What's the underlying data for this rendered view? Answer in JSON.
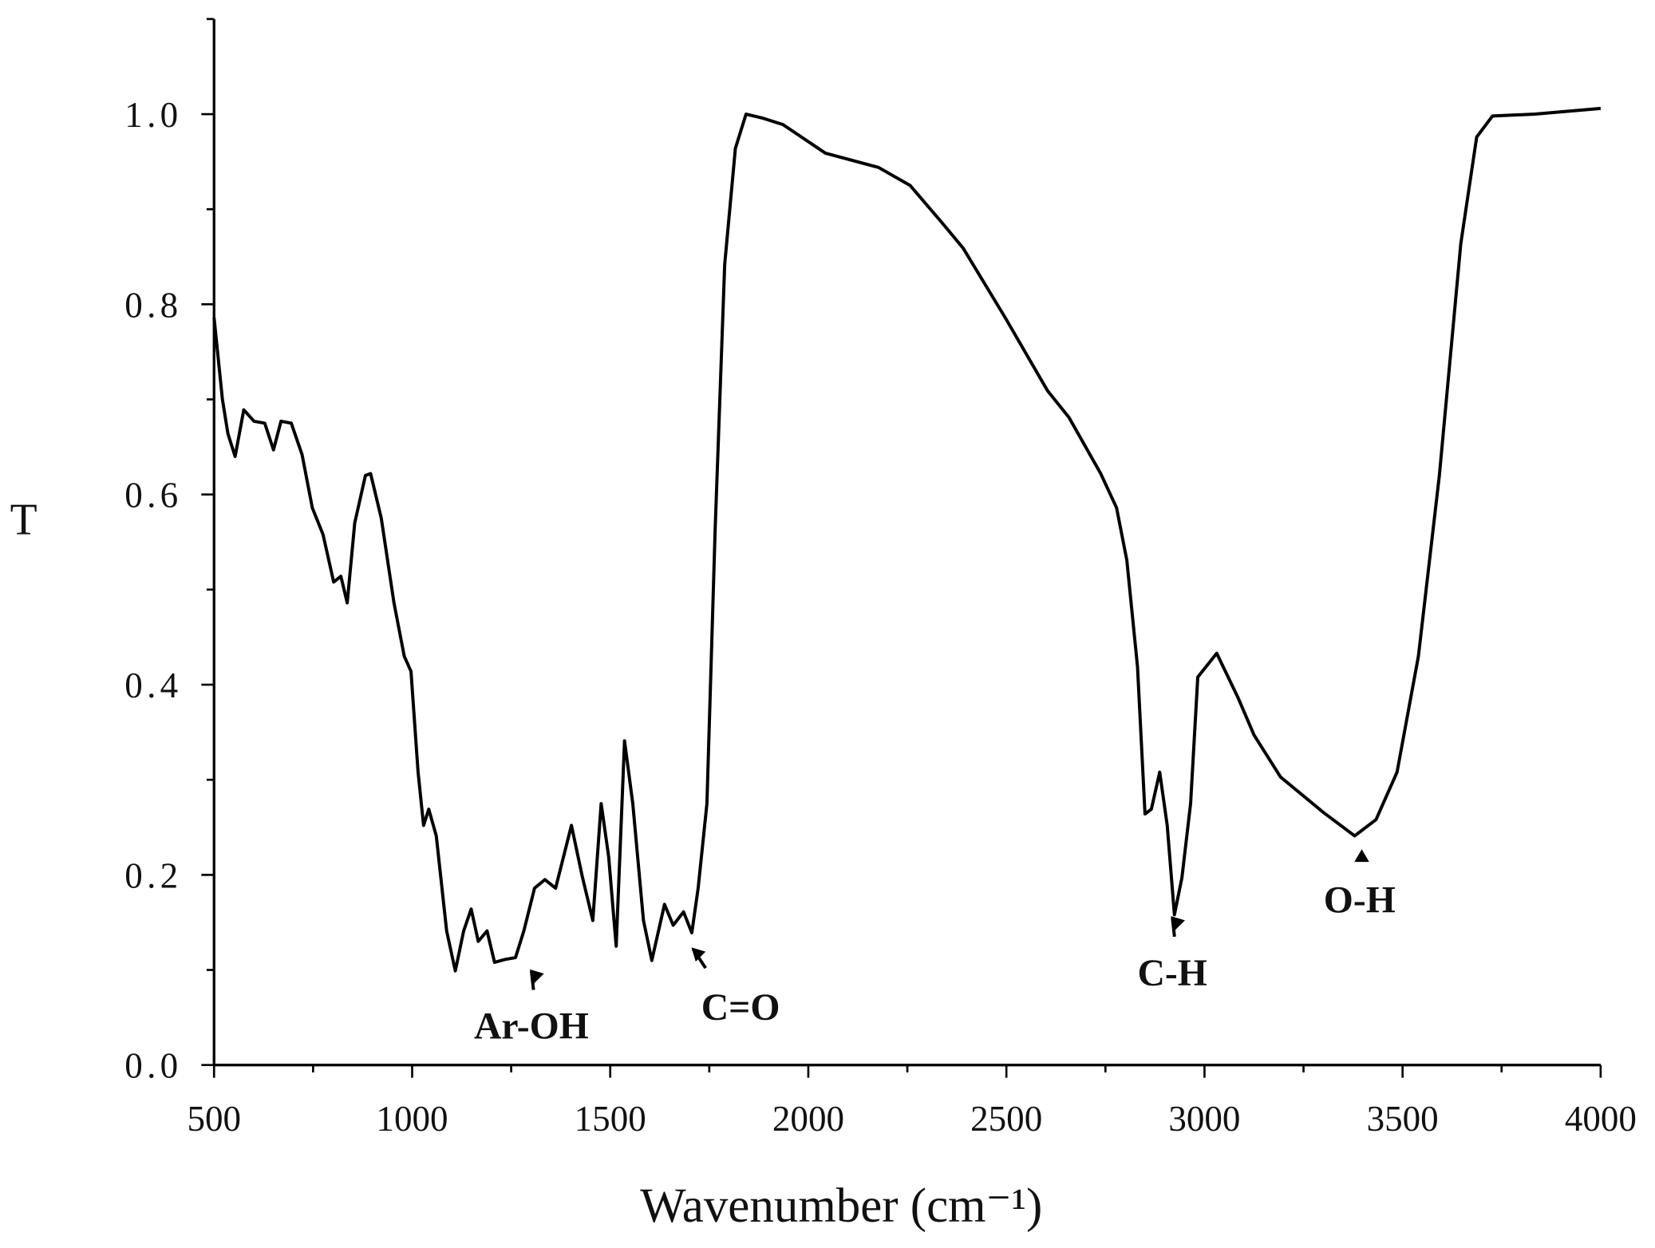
{
  "chart_data": {
    "type": "line",
    "xlabel": "Wavenumber (cm⁻¹)",
    "ylabel": "T",
    "xlim": [
      500,
      4000
    ],
    "ylim": [
      0,
      1.1
    ],
    "xticks": [
      500,
      1000,
      1500,
      2000,
      2500,
      3000,
      3500,
      4000
    ],
    "xticks_minor": [
      750,
      1250,
      1750,
      2250,
      2750,
      3250,
      3750
    ],
    "yticks": [
      {
        "value": 0,
        "label": "0.0"
      },
      0.2,
      0.4,
      0.6,
      0.8,
      {
        "value": 1,
        "label": "1.0"
      }
    ],
    "yticks_minor": [
      0.1,
      0.3,
      0.5,
      0.7,
      0.9,
      1.1
    ],
    "grid": false,
    "series": [
      {
        "color": "#000000",
        "x": [
          500,
          521,
          535,
          553,
          575,
          601,
          628,
          650,
          669,
          695,
          722,
          748,
          775,
          802,
          820,
          836,
          855,
          882,
          895,
          922,
          954,
          980,
          997,
          1015,
          1029,
          1042,
          1061,
          1087,
          1109,
          1130,
          1149,
          1167,
          1189,
          1208,
          1234,
          1261,
          1282,
          1309,
          1335,
          1362,
          1402,
          1429,
          1456,
          1477,
          1496,
          1515,
          1536,
          1557,
          1584,
          1605,
          1637,
          1659,
          1685,
          1706,
          1722,
          1744,
          1765,
          1789,
          1816,
          1843,
          1883,
          1936,
          2043,
          2177,
          2257,
          2337,
          2391,
          2497,
          2604,
          2658,
          2738,
          2778,
          2804,
          2831,
          2850,
          2866,
          2887,
          2906,
          2924,
          2943,
          2965,
          2983,
          3031,
          3085,
          3125,
          3192,
          3299,
          3379,
          3433,
          3486,
          3540,
          3593,
          3647,
          3687,
          3727,
          3834,
          4000
        ],
        "values": [
          0.786,
          0.7,
          0.664,
          0.64,
          0.689,
          0.677,
          0.675,
          0.647,
          0.677,
          0.675,
          0.642,
          0.586,
          0.558,
          0.508,
          0.514,
          0.486,
          0.57,
          0.62,
          0.622,
          0.575,
          0.486,
          0.43,
          0.414,
          0.308,
          0.252,
          0.269,
          0.241,
          0.141,
          0.099,
          0.141,
          0.164,
          0.13,
          0.141,
          0.108,
          0.111,
          0.113,
          0.141,
          0.186,
          0.195,
          0.186,
          0.252,
          0.199,
          0.152,
          0.275,
          0.219,
          0.125,
          0.341,
          0.275,
          0.152,
          0.11,
          0.169,
          0.147,
          0.161,
          0.139,
          0.186,
          0.275,
          0.564,
          0.842,
          0.964,
          1.0,
          0.996,
          0.989,
          0.959,
          0.944,
          0.925,
          0.886,
          0.859,
          0.786,
          0.709,
          0.681,
          0.622,
          0.586,
          0.531,
          0.419,
          0.264,
          0.269,
          0.308,
          0.252,
          0.158,
          0.197,
          0.275,
          0.408,
          0.433,
          0.386,
          0.347,
          0.303,
          0.266,
          0.241,
          0.258,
          0.308,
          0.43,
          0.62,
          0.864,
          0.976,
          0.998,
          1.0,
          1.006
        ]
      }
    ],
    "annotations": [
      {
        "text": "Ar-OH",
        "x": 1301,
        "y": 0.099
      },
      {
        "text": "C=O",
        "x": 1709,
        "y": 0.122
      },
      {
        "text": "C-H",
        "x": 2919,
        "y": 0.155
      },
      {
        "text": "O-H",
        "x": 3397,
        "y": 0.227
      }
    ]
  }
}
